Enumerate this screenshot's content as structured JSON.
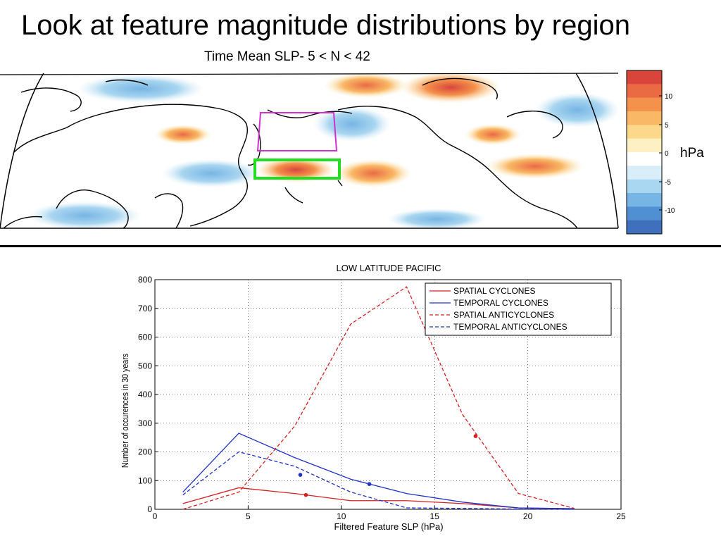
{
  "slide": {
    "title": "Look at feature magnitude distributions by region"
  },
  "map": {
    "title": "Time Mean SLP- 5 < N < 42",
    "colorbar": {
      "ticks": [
        "10",
        "5",
        "0",
        "-5",
        "-10"
      ],
      "unit": "hPa",
      "colors": [
        "#d9453a",
        "#ea6a44",
        "#f4914c",
        "#f9b865",
        "#fcd98a",
        "#fdf0c2",
        "#ffffff",
        "#d9eef8",
        "#a9d6f0",
        "#77b5e4",
        "#4f8fd2",
        "#3f6fbd"
      ]
    },
    "regions": [
      {
        "name": "magenta-box",
        "color": "#d030d0"
      },
      {
        "name": "green-box",
        "color": "#22dd22"
      }
    ]
  },
  "chart_data": {
    "type": "line",
    "title": "LOW LATITUDE PACIFIC",
    "xlabel": "Filtered Feature SLP (hPa)",
    "ylabel": "Number of occurences in 30 years",
    "xlim": [
      0,
      25
    ],
    "ylim": [
      0,
      800
    ],
    "xticks": [
      0,
      5,
      10,
      15,
      20,
      25
    ],
    "yticks": [
      0,
      100,
      200,
      300,
      400,
      500,
      600,
      700,
      800
    ],
    "grid": true,
    "legend_position": "top-right",
    "series": [
      {
        "name": "SPATIAL CYCLONES",
        "color": "#d62020",
        "dash": "solid",
        "x": [
          1.5,
          4.5,
          7.5,
          10.5,
          13.5,
          16.5,
          19.5,
          22.5
        ],
        "y": [
          20,
          75,
          55,
          30,
          30,
          20,
          5,
          2
        ],
        "marker": [
          8.1,
          50
        ]
      },
      {
        "name": "TEMPORAL CYCLONES",
        "color": "#1f33c8",
        "dash": "solid",
        "x": [
          1.5,
          4.5,
          7.5,
          10.5,
          13.5,
          16.5,
          19.5,
          22.5
        ],
        "y": [
          60,
          265,
          180,
          105,
          55,
          25,
          5,
          2
        ],
        "marker": [
          11.5,
          88
        ]
      },
      {
        "name": "SPATIAL ANTICYCLONES",
        "color": "#d62020",
        "dash": "dashed",
        "x": [
          1.5,
          4.5,
          7.5,
          10.5,
          13.5,
          16.5,
          19.5,
          22.5
        ],
        "y": [
          0,
          60,
          290,
          645,
          775,
          330,
          55,
          3
        ],
        "marker": [
          17.2,
          255
        ]
      },
      {
        "name": "TEMPORAL ANTICYCLONES",
        "color": "#1f33c8",
        "dash": "dashed",
        "x": [
          1.5,
          4.5,
          7.5,
          10.5,
          13.5,
          16.5,
          19.5,
          22.5
        ],
        "y": [
          50,
          200,
          150,
          60,
          5,
          3,
          1,
          0
        ],
        "marker": [
          7.8,
          120
        ]
      }
    ]
  }
}
